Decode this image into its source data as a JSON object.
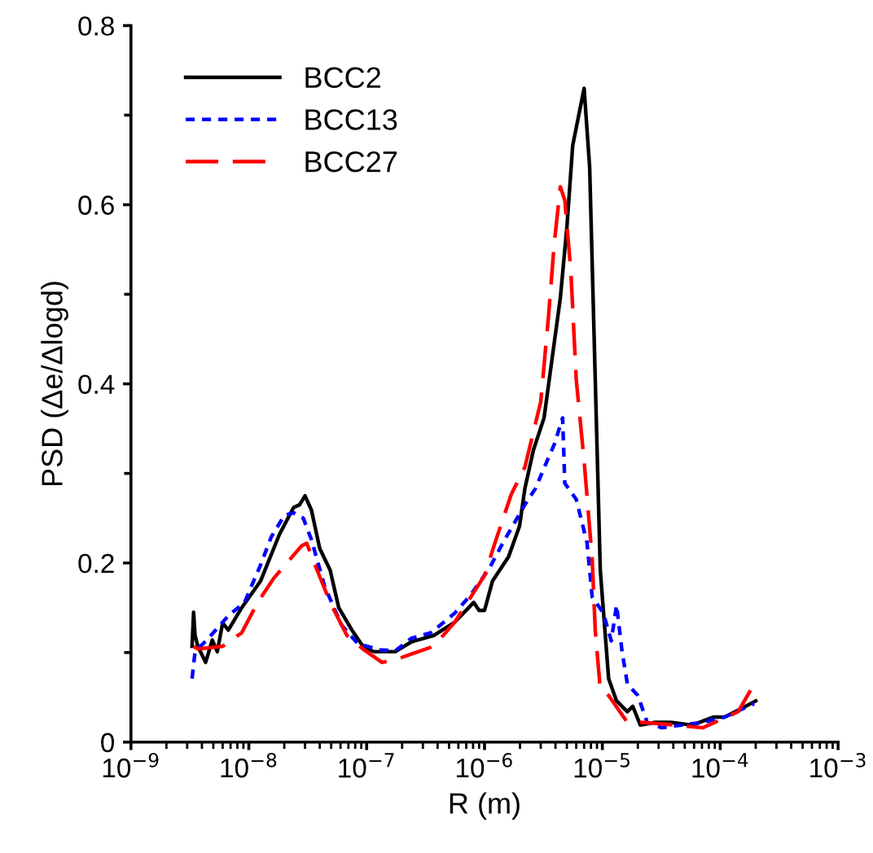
{
  "chart_data": {
    "type": "line",
    "xlabel": "R (m)",
    "ylabel": "PSD (Δe/Δlogd)",
    "log": "x",
    "legend": "top left",
    "grid": false,
    "marker": "none",
    "xlim": [
      1e-09,
      0.001
    ],
    "xticks": [
      {
        "value": 1e-09,
        "label": "10$^{−9}$"
      },
      {
        "value": 1e-08,
        "label": "10$^{−8}$"
      },
      {
        "value": 1e-07,
        "label": "10$^{−7}$"
      },
      {
        "value": 1e-06,
        "label": "10$^{−6}$"
      },
      {
        "value": 1e-05,
        "label": "10$^{−5}$"
      },
      {
        "value": 0.0001,
        "label": "10$^{−4}$"
      },
      {
        "value": 0.001,
        "label": "10$^{−3}$"
      }
    ],
    "ylim": [
      0,
      0.8
    ],
    "yticks": [
      0,
      {
        "value": 0.1,
        "label": null
      },
      0.2,
      {
        "value": 0.3,
        "label": null
      },
      0.4,
      {
        "value": 0.5,
        "label": null
      },
      0.6,
      {
        "value": 0.7,
        "label": null
      },
      0.8
    ],
    "series": [
      {
        "name": "BCC2",
        "color": "#000000",
        "line_style": "solid",
        "x": [
          3.3e-09,
          3.4e-09,
          3.5e-09,
          3.7e-09,
          4.3e-09,
          4.9e-09,
          5.4e-09,
          6e-09,
          6.7e-09,
          8.7e-09,
          1.26e-08,
          1.82e-08,
          2.4e-08,
          2.7e-08,
          3e-08,
          3.4e-08,
          4e-08,
          4.9e-08,
          5.8e-08,
          7.5e-08,
          9.3e-08,
          1.15e-07,
          1.75e-07,
          2.4e-07,
          3.7e-07,
          5.6e-07,
          8.1e-07,
          9e-07,
          1e-06,
          1.17e-06,
          1.6e-06,
          1.98e-06,
          2.2e-06,
          2.6e-06,
          3.2e-06,
          3.7e-06,
          4.4e-06,
          5e-06,
          5.6e-06,
          7e-06,
          7.8e-06,
          8.7e-06,
          9.6e-06,
          1.13e-05,
          1.32e-05,
          1.63e-05,
          1.81e-05,
          2.1e-05,
          2.8e-05,
          3.8e-05,
          5.8e-05,
          8.8e-05,
          0.000109,
          0.000149,
          0.0002
        ],
        "values": [
          0.107,
          0.145,
          0.119,
          0.107,
          0.089,
          0.114,
          0.101,
          0.133,
          0.125,
          0.15,
          0.18,
          0.232,
          0.262,
          0.265,
          0.275,
          0.259,
          0.216,
          0.192,
          0.15,
          0.125,
          0.107,
          0.101,
          0.101,
          0.112,
          0.119,
          0.134,
          0.156,
          0.147,
          0.147,
          0.18,
          0.207,
          0.241,
          0.283,
          0.326,
          0.362,
          0.423,
          0.496,
          0.575,
          0.666,
          0.73,
          0.642,
          0.405,
          0.192,
          0.071,
          0.046,
          0.034,
          0.04,
          0.019,
          0.022,
          0.022,
          0.019,
          0.028,
          0.028,
          0.037,
          0.046
        ]
      },
      {
        "name": "BCC13",
        "color": "#0000ff",
        "line_style": "dotted",
        "x": [
          3.3e-09,
          3.5e-09,
          4.4e-09,
          6.7e-09,
          9.2e-09,
          1.26e-08,
          1.55e-08,
          2e-08,
          2.4e-08,
          2.9e-08,
          3.4e-08,
          4.4e-08,
          6.1e-08,
          8.4e-08,
          1.28e-07,
          1.75e-07,
          2.4e-07,
          3.5e-07,
          5.6e-07,
          7.7e-07,
          1.11e-06,
          1.44e-06,
          1.78e-06,
          2.2e-06,
          2.7e-06,
          3.4e-06,
          3.9e-06,
          4.6e-06,
          4.8e-06,
          6e-06,
          7.4e-06,
          8.2e-06,
          1.02e-05,
          1.19e-05,
          1.32e-05,
          1.47e-05,
          1.63e-05,
          2e-05,
          2.4e-05,
          3.2e-05,
          4.7e-05,
          7.1e-05,
          0.000109,
          0.000194
        ],
        "values": [
          0.071,
          0.101,
          0.114,
          0.141,
          0.156,
          0.198,
          0.229,
          0.253,
          0.256,
          0.25,
          0.226,
          0.174,
          0.131,
          0.11,
          0.103,
          0.102,
          0.116,
          0.122,
          0.144,
          0.165,
          0.195,
          0.223,
          0.244,
          0.265,
          0.283,
          0.314,
          0.332,
          0.362,
          0.289,
          0.271,
          0.223,
          0.162,
          0.144,
          0.113,
          0.153,
          0.101,
          0.065,
          0.052,
          0.022,
          0.016,
          0.019,
          0.022,
          0.028,
          0.043
        ]
      },
      {
        "name": "BCC27",
        "color": "#ff0000",
        "line_style": "dashed",
        "x": [
          3.4e-09,
          3.7e-09,
          6e-09,
          8.7e-09,
          1.19e-08,
          1.63e-08,
          2.8e-08,
          3.1e-08,
          3.8e-08,
          4.9e-08,
          6.8e-08,
          9.3e-08,
          1.35e-07,
          1.75e-07,
          3.7e-07,
          5.6e-07,
          1e-06,
          1.23e-06,
          1.69e-06,
          2.2e-06,
          3e-06,
          3.5e-06,
          3.9e-06,
          4.4e-06,
          4.8e-06,
          5.4e-06,
          6e-06,
          7e-06,
          8.2e-06,
          8.7e-06,
          9.6e-06,
          1.13e-05,
          1.63e-05,
          2.2e-05,
          4.2e-05,
          7.1e-05,
          0.000142,
          0.000194
        ],
        "values": [
          0.107,
          0.104,
          0.107,
          0.122,
          0.156,
          0.183,
          0.219,
          0.222,
          0.192,
          0.156,
          0.119,
          0.104,
          0.089,
          0.092,
          0.107,
          0.134,
          0.186,
          0.223,
          0.277,
          0.307,
          0.38,
          0.477,
          0.556,
          0.62,
          0.605,
          0.526,
          0.405,
          0.314,
          0.204,
          0.125,
          0.059,
          0.052,
          0.022,
          0.022,
          0.019,
          0.016,
          0.034,
          0.065
        ]
      }
    ]
  }
}
